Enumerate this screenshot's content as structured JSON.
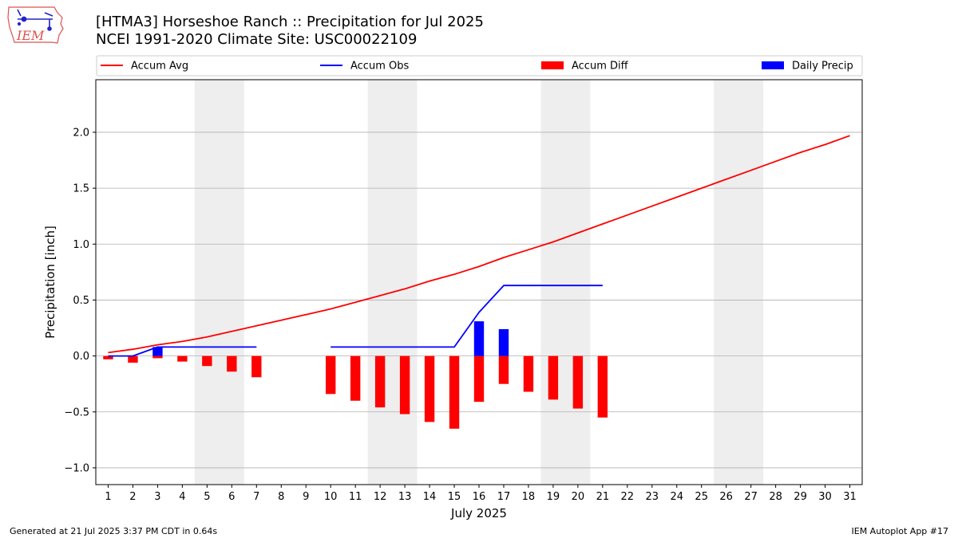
{
  "header": {
    "title_line1": "[HTMA3] Horseshoe Ranch :: Precipitation for Jul 2025",
    "title_line2": "NCEI 1991-2020 Climate Site: USC00022109",
    "logo_text": "IEM"
  },
  "footer": {
    "generated": "Generated at 21 Jul 2025 3:37 PM CDT in 0.64s",
    "app": "IEM Autoplot App #17"
  },
  "colors": {
    "avg": "#ff0000",
    "obs": "#0000ff",
    "diff": "#ff0000",
    "daily": "#0000ff",
    "weekend": "#eeeeee",
    "grid": "#b0b0b0"
  },
  "chart_data": {
    "type": "line",
    "xlabel": "July 2025",
    "ylabel": "Precipitation [inch]",
    "xlim": [
      0.5,
      31.5
    ],
    "ylim": [
      -1.15,
      2.47
    ],
    "yticks": [
      -1.0,
      -0.5,
      0.0,
      0.5,
      1.0,
      1.5,
      2.0
    ],
    "ytick_labels": [
      "−1.0",
      "−0.5",
      "0.0",
      "0.5",
      "1.0",
      "1.5",
      "2.0"
    ],
    "days": [
      1,
      2,
      3,
      4,
      5,
      6,
      7,
      8,
      9,
      10,
      11,
      12,
      13,
      14,
      15,
      16,
      17,
      18,
      19,
      20,
      21,
      22,
      23,
      24,
      25,
      26,
      27,
      28,
      29,
      30,
      31
    ],
    "weekend_spans": [
      [
        5,
        6
      ],
      [
        12,
        13
      ],
      [
        19,
        20
      ],
      [
        26,
        27
      ]
    ],
    "grid": "y",
    "legend": {
      "placement": "top",
      "items": [
        {
          "label": "Accum Avg",
          "kind": "line",
          "color": "#ff0000"
        },
        {
          "label": "Accum Obs",
          "kind": "line",
          "color": "#0000ff"
        },
        {
          "label": "Accum Diff",
          "kind": "bar",
          "color": "#ff0000"
        },
        {
          "label": "Daily Precip",
          "kind": "bar",
          "color": "#0000ff"
        }
      ]
    },
    "series": [
      {
        "name": "Accum Avg",
        "type": "line",
        "x": [
          1,
          2,
          3,
          4,
          5,
          6,
          7,
          8,
          9,
          10,
          11,
          12,
          13,
          14,
          15,
          16,
          17,
          18,
          19,
          20,
          21,
          22,
          23,
          24,
          25,
          26,
          27,
          28,
          29,
          30,
          31
        ],
        "values": [
          0.03,
          0.06,
          0.1,
          0.13,
          0.17,
          0.22,
          0.27,
          0.32,
          0.37,
          0.42,
          0.48,
          0.54,
          0.6,
          0.67,
          0.73,
          0.8,
          0.88,
          0.95,
          1.02,
          1.1,
          1.18,
          1.26,
          1.34,
          1.42,
          1.5,
          1.58,
          1.66,
          1.74,
          1.82,
          1.89,
          1.97
        ]
      },
      {
        "name": "Accum Obs",
        "type": "line",
        "x": [
          1,
          2,
          3,
          4,
          5,
          6,
          7,
          null,
          10,
          11,
          12,
          13,
          14,
          15,
          16,
          17,
          18,
          19,
          20,
          21
        ],
        "values": [
          0.0,
          0.0,
          0.08,
          0.08,
          0.08,
          0.08,
          0.08,
          null,
          0.08,
          0.08,
          0.08,
          0.08,
          0.08,
          0.08,
          0.39,
          0.63,
          0.63,
          0.63,
          0.63,
          0.63
        ]
      },
      {
        "name": "Accum Diff",
        "type": "bar",
        "x": [
          1,
          2,
          3,
          4,
          5,
          6,
          7,
          10,
          11,
          12,
          13,
          14,
          15,
          16,
          17,
          18,
          19,
          20,
          21
        ],
        "values": [
          -0.03,
          -0.06,
          -0.02,
          -0.05,
          -0.09,
          -0.14,
          -0.19,
          -0.34,
          -0.4,
          -0.46,
          -0.52,
          -0.59,
          -0.65,
          -0.41,
          -0.25,
          -0.32,
          -0.39,
          -0.47,
          -0.55
        ]
      },
      {
        "name": "Daily Precip",
        "type": "bar",
        "x": [
          3,
          16,
          17
        ],
        "values": [
          0.08,
          0.31,
          0.24
        ]
      }
    ]
  }
}
